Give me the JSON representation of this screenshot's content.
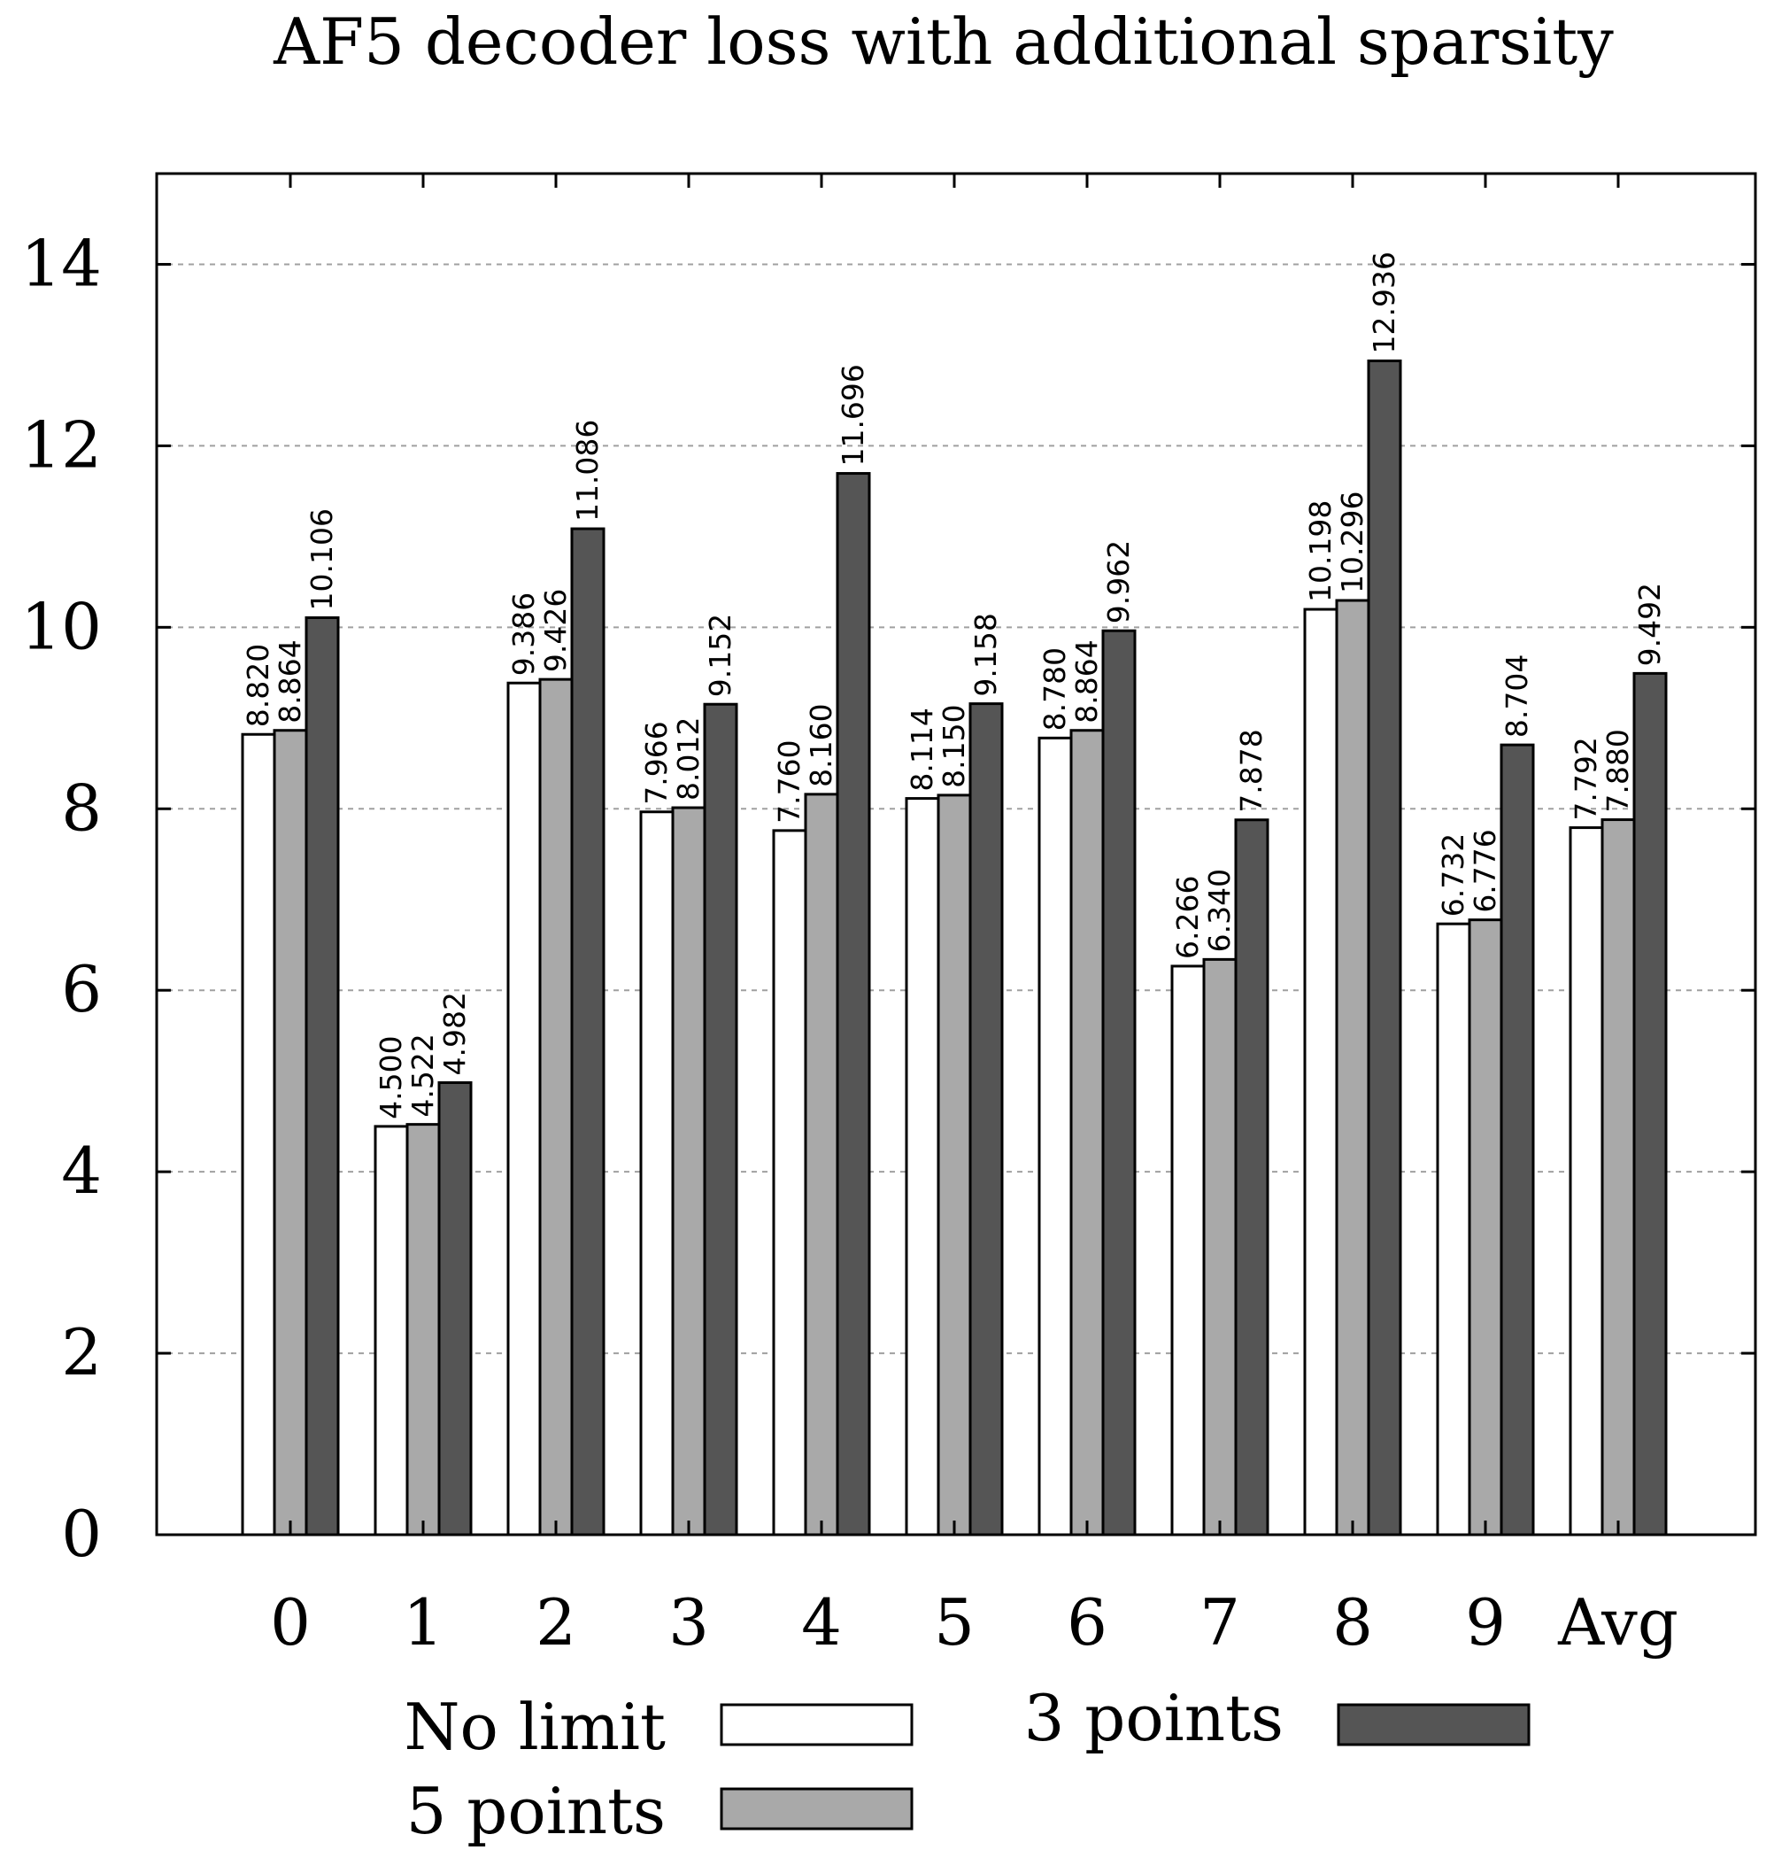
{
  "chart_data": {
    "type": "bar",
    "title": "AF5 decoder loss with additional sparsity",
    "xlabel": "",
    "ylabel": "",
    "ylim": [
      0,
      15
    ],
    "yticks": [
      0,
      2,
      4,
      6,
      8,
      10,
      12,
      14
    ],
    "grid": true,
    "legend_position": "bottom",
    "categories": [
      "0",
      "1",
      "2",
      "3",
      "4",
      "5",
      "6",
      "7",
      "8",
      "9",
      "Avg"
    ],
    "series": [
      {
        "name": "No limit",
        "color": "#ffffff",
        "values": [
          8.82,
          4.5,
          9.386,
          7.966,
          7.76,
          8.114,
          8.78,
          6.266,
          10.198,
          6.732,
          7.792
        ],
        "labels": [
          "8.820",
          "4.500",
          "9.386",
          "7.966",
          "7.760",
          "8.114",
          "8.780",
          "6.266",
          "10.198",
          "6.732",
          "7.792"
        ]
      },
      {
        "name": "5 points",
        "color": "#a9a9a9",
        "values": [
          8.864,
          4.522,
          9.426,
          8.012,
          8.16,
          8.15,
          8.864,
          6.34,
          10.296,
          6.776,
          7.88
        ],
        "labels": [
          "8.864",
          "4.522",
          "9.426",
          "8.012",
          "8.160",
          "8.150",
          "8.864",
          "6.340",
          "10.296",
          "6.776",
          "7.880"
        ]
      },
      {
        "name": "3 points",
        "color": "#555555",
        "values": [
          10.106,
          4.982,
          11.086,
          9.152,
          11.696,
          9.158,
          9.962,
          7.878,
          12.936,
          8.704,
          9.492
        ],
        "labels": [
          "10.106",
          "4.982",
          "11.086",
          "9.152",
          "11.696",
          "9.158",
          "9.962",
          "7.878",
          "12.936",
          "8.704",
          "9.492"
        ]
      }
    ]
  }
}
